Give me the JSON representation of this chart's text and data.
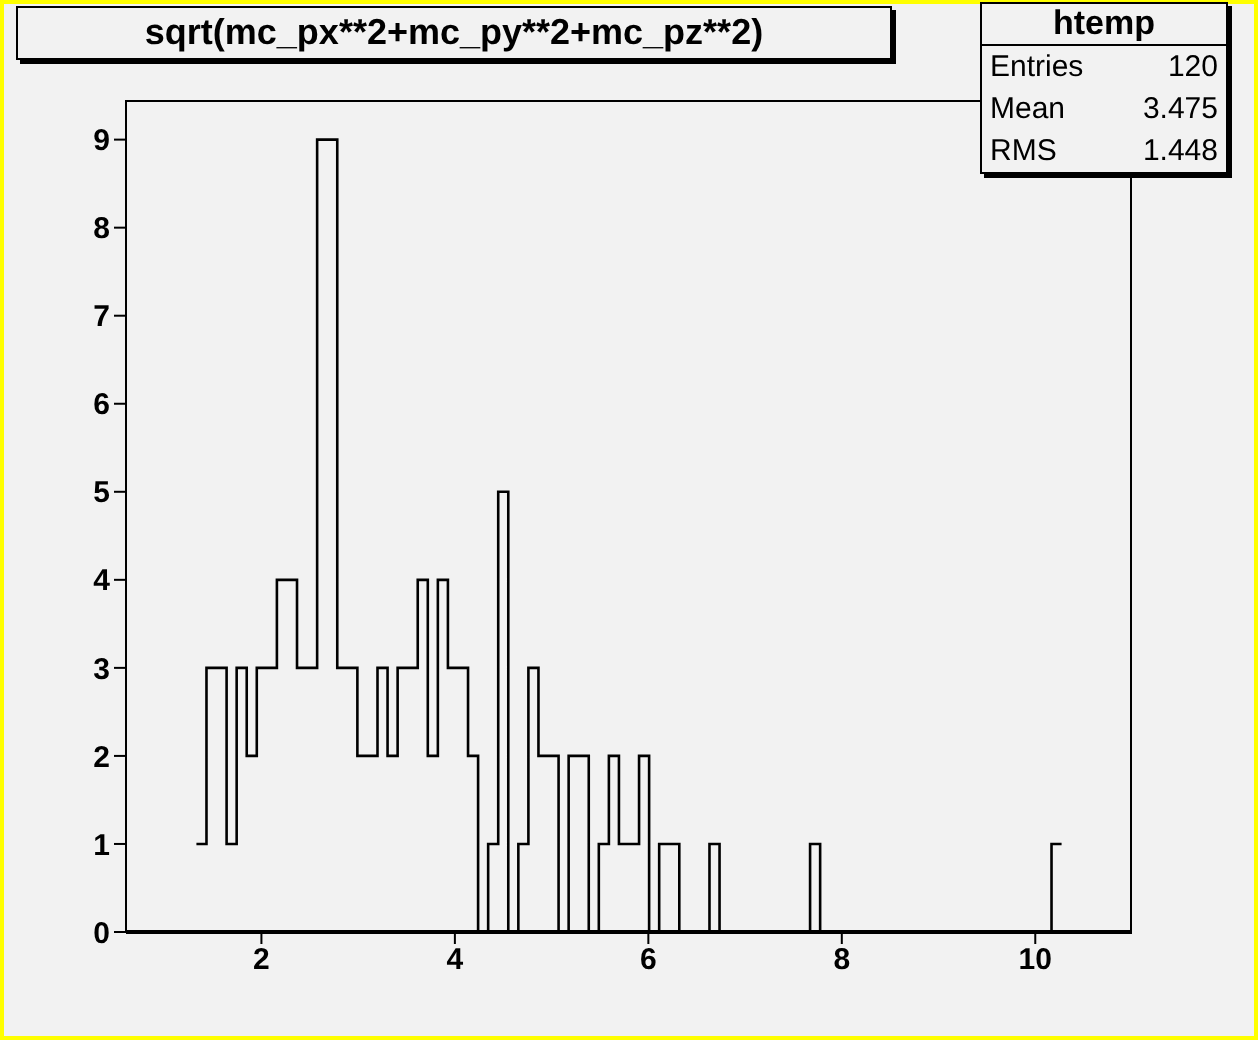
{
  "chart_data": {
    "type": "histogram",
    "title": "sqrt(mc_px**2+mc_py**2+mc_pz**2)",
    "annotations": [
      "htemp",
      "Entries 120",
      "Mean 3.475",
      "RMS 1.448"
    ],
    "bins": [
      1.328,
      1.432,
      1.536,
      1.64,
      1.744,
      1.848,
      1.952,
      2.056,
      2.16,
      2.264,
      2.368,
      2.472,
      2.576,
      2.68,
      2.784,
      2.888,
      2.992,
      3.096,
      3.2,
      3.304,
      3.408,
      3.512,
      3.616,
      3.72,
      3.824,
      3.928,
      4.032,
      4.136,
      4.24,
      4.344,
      4.448,
      4.552,
      4.656,
      4.76,
      4.864,
      4.968,
      5.072,
      5.176,
      5.28,
      5.384,
      5.488,
      5.592,
      5.696,
      5.8,
      5.904,
      6.008,
      6.112,
      6.216,
      6.32,
      6.424,
      6.528,
      6.632,
      6.736,
      6.84,
      6.944,
      7.048,
      7.152,
      7.256,
      7.36,
      7.464,
      7.568,
      7.672,
      7.776,
      7.88,
      7.984,
      8.088,
      8.192,
      8.296,
      8.4,
      8.504,
      8.608,
      8.712,
      8.816,
      8.92,
      9.024,
      9.128,
      9.232,
      9.336,
      9.44,
      9.544,
      9.648,
      9.752,
      9.856,
      9.96,
      10.064,
      10.168,
      10.272
    ],
    "values": [
      1,
      3,
      3,
      1,
      3,
      2,
      3,
      3,
      4,
      4,
      3,
      3,
      9,
      9,
      3,
      3,
      2,
      2,
      3,
      2,
      3,
      3,
      4,
      2,
      4,
      3,
      3,
      2,
      0,
      1,
      5,
      0,
      1,
      3,
      2,
      2,
      0,
      2,
      2,
      0,
      1,
      2,
      1,
      1,
      2,
      0,
      1,
      1,
      0,
      0,
      0,
      1,
      0,
      0,
      0,
      0,
      0,
      0,
      0,
      0,
      0,
      1,
      0,
      0,
      0,
      0,
      0,
      0,
      0,
      0,
      0,
      0,
      0,
      0,
      0,
      0,
      0,
      0,
      0,
      0,
      0,
      0,
      0,
      0,
      0,
      1
    ],
    "color": "#000000",
    "xlim": [
      0.6,
      11.0
    ],
    "xticks": [
      2,
      4,
      6,
      8,
      10
    ],
    "ylim": [
      0,
      9.45
    ],
    "yticks": [
      0,
      1,
      2,
      3,
      4,
      5,
      6,
      7,
      8,
      9
    ],
    "grid": false
  }
}
